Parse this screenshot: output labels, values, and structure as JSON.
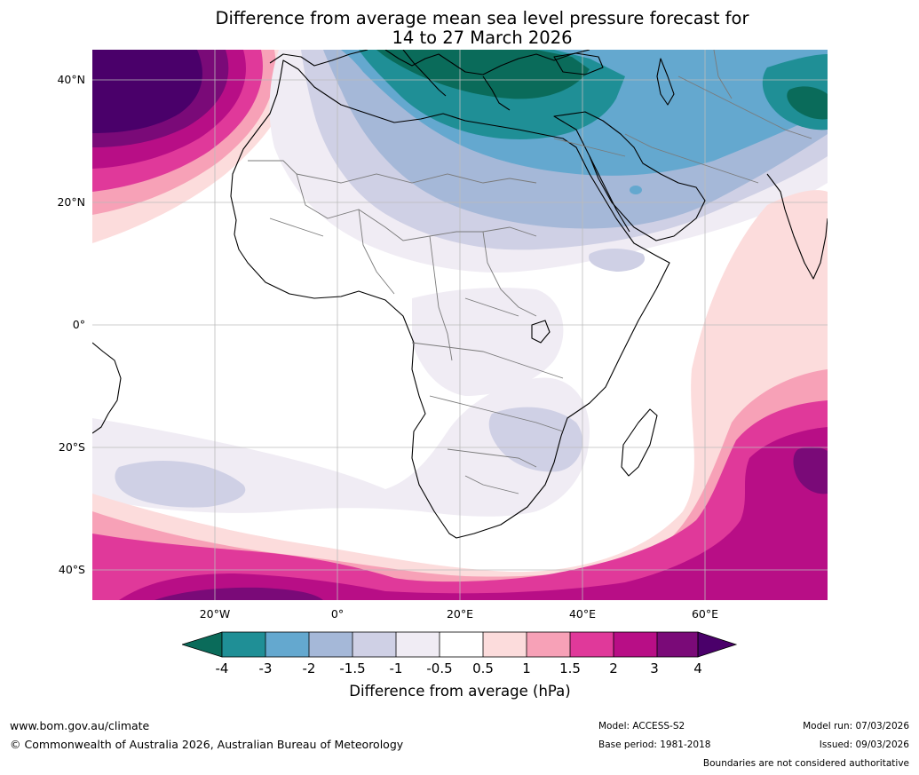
{
  "title": {
    "line1": "Difference from average mean sea level pressure forecast for",
    "line2": "14 to 27 March 2026"
  },
  "axes": {
    "lat_ticks": [
      "40°N",
      "20°N",
      "0°",
      "20°S",
      "40°S"
    ],
    "lon_ticks": [
      "20°W",
      "0°",
      "20°E",
      "40°E",
      "60°E"
    ]
  },
  "colorbar": {
    "title": "Difference from average (hPa)",
    "tick_labels": [
      "-4",
      "-3",
      "-2",
      "-1.5",
      "-1",
      "-0.5",
      "0.5",
      "1",
      "1.5",
      "2",
      "3",
      "4"
    ],
    "colors": {
      "lt_m4": "#0a6b5a",
      "m4_m3": "#1f8f96",
      "m3_m2": "#64a8cf",
      "m2_m15": "#a5b8d8",
      "m15_m1": "#cfd0e5",
      "m1_m05": "#f0ecf4",
      "m05_05": "#ffffff",
      "p05_1": "#fcdcdc",
      "p1_15": "#f7a1b7",
      "p15_2": "#e0399a",
      "p2_3": "#b80e86",
      "p3_4": "#7a0a78",
      "gt_4": "#4a006a"
    }
  },
  "footer": {
    "website": "www.bom.gov.au/climate",
    "copyright": "© Commonwealth of Australia 2026, Australian Bureau of Meteorology",
    "model": "Model: ACCESS-S2",
    "base_period": "Base period: 1981-2018",
    "model_run": "Model run: 07/03/2026",
    "issued": "Issued: 09/03/2026",
    "boundaries": "Boundaries are not considered authoritative"
  }
}
